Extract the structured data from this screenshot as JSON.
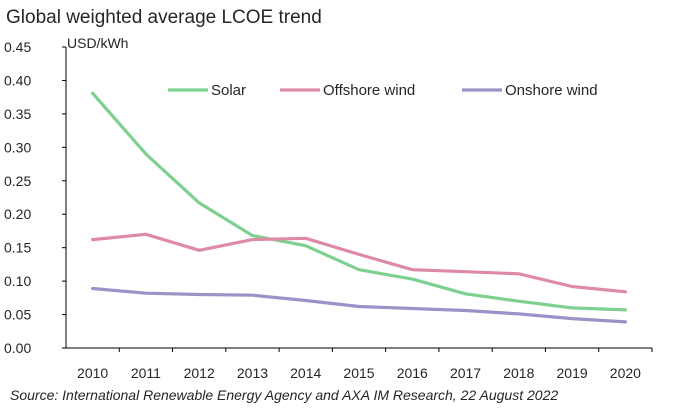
{
  "chart_data": {
    "type": "line",
    "title": "Global weighted average LCOE trend",
    "ylabel": "USD/kWh",
    "xlabel": "",
    "x": [
      "2010",
      "2011",
      "2012",
      "2013",
      "2014",
      "2015",
      "2016",
      "2017",
      "2018",
      "2019",
      "2020"
    ],
    "ylim": [
      0,
      0.45
    ],
    "yticks": [
      "0.00",
      "0.05",
      "0.10",
      "0.15",
      "0.20",
      "0.25",
      "0.30",
      "0.35",
      "0.40",
      "0.45"
    ],
    "grid": false,
    "legend_position": "top-right",
    "series": [
      {
        "name": "Solar",
        "color": "#7ed08f",
        "values": [
          0.381,
          0.29,
          0.217,
          0.168,
          0.153,
          0.117,
          0.103,
          0.081,
          0.07,
          0.06,
          0.057
        ]
      },
      {
        "name": "Offshore wind",
        "color": "#de8aa6",
        "values": [
          0.162,
          0.17,
          0.146,
          0.162,
          0.164,
          0.14,
          0.117,
          0.114,
          0.111,
          0.092,
          0.084
        ]
      },
      {
        "name": "Onshore wind",
        "color": "#9a93c8",
        "values": [
          0.089,
          0.082,
          0.08,
          0.079,
          0.071,
          0.062,
          0.059,
          0.056,
          0.051,
          0.044,
          0.039
        ]
      }
    ],
    "source": "Source: International Renewable Energy Agency and AXA IM Research, 22 August 2022"
  }
}
